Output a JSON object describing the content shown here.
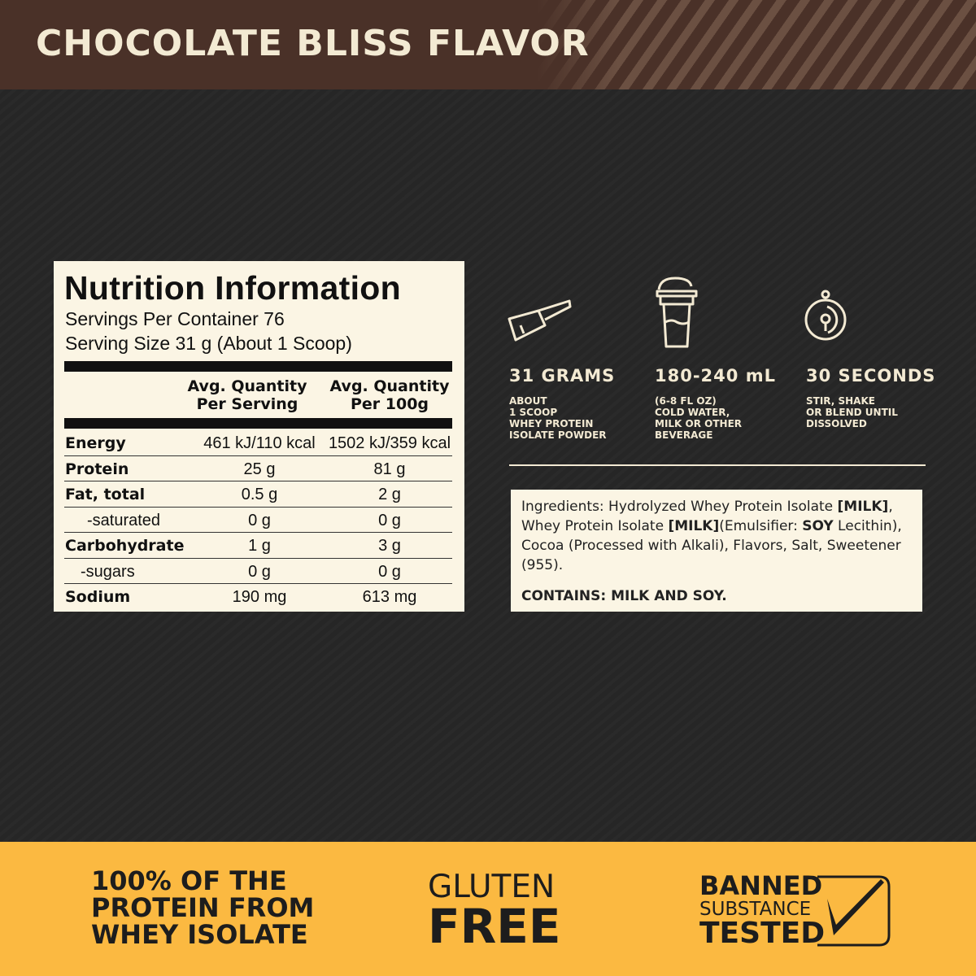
{
  "header": {
    "title": "CHOCOLATE BLISS FLAVOR"
  },
  "nutrition": {
    "title": "Nutrition Information",
    "servings": "Servings Per Container 76",
    "serving_size": "Serving Size 31 g (About 1 Scoop)",
    "col1": "Avg. Quantity\nPer Serving",
    "col2": "Avg. Quantity\nPer 100g",
    "rows": [
      {
        "label": "Energy",
        "per_serving": "461 kJ/110 kcal",
        "per_100g": "1502 kJ/359 kcal"
      },
      {
        "label": "Protein",
        "per_serving": "25 g",
        "per_100g": "81 g"
      },
      {
        "label": "Fat, total",
        "per_serving": "0.5 g",
        "per_100g": "2 g"
      },
      {
        "label": "-saturated",
        "per_serving": "0 g",
        "per_100g": "0 g"
      },
      {
        "label": "Carbohydrate",
        "per_serving": "1 g",
        "per_100g": "3 g"
      },
      {
        "label": "-sugars",
        "per_serving": "0 g",
        "per_100g": "0 g"
      },
      {
        "label": "Sodium",
        "per_serving": "190 mg",
        "per_100g": "613 mg"
      }
    ]
  },
  "directions": [
    {
      "icon": "scoop-icon",
      "title": "31 GRAMS",
      "text": "ABOUT\n1 SCOOP\nWHEY PROTEIN\nISOLATE POWDER"
    },
    {
      "icon": "shaker-icon",
      "title": "180-240 mL",
      "text": "(6-8 FL OZ)\nCOLD WATER,\nMILK OR OTHER\nBEVERAGE"
    },
    {
      "icon": "timer-icon",
      "title": "30 SECONDS",
      "text": "STIR, SHAKE\nOR BLEND UNTIL\nDISSOLVED"
    }
  ],
  "ingredients": {
    "p1": "Ingredients: Hydrolyzed Whey Protein Isolate ",
    "milk1": "[MILK]",
    "p2": ", Whey Protein Isolate ",
    "milk2": "[MILK]",
    "p3": "(Emulsifier: ",
    "soy": "SOY",
    "p4": " Lecithin), Cocoa (Processed with Alkali), Flavors, Salt, Sweetener (955).",
    "contains": "CONTAINS: MILK AND SOY."
  },
  "footer": {
    "claim1": [
      "100% OF THE",
      "PROTEIN FROM",
      "WHEY ISOLATE"
    ],
    "claim2": [
      "GLUTEN",
      "FREE"
    ],
    "claim3": [
      "BANNED",
      "SUBSTANCE",
      "TESTED"
    ]
  },
  "colors": {
    "header": "#4a3128",
    "background": "#262626",
    "footer": "#fbb941",
    "panel": "#fbf5e4"
  }
}
